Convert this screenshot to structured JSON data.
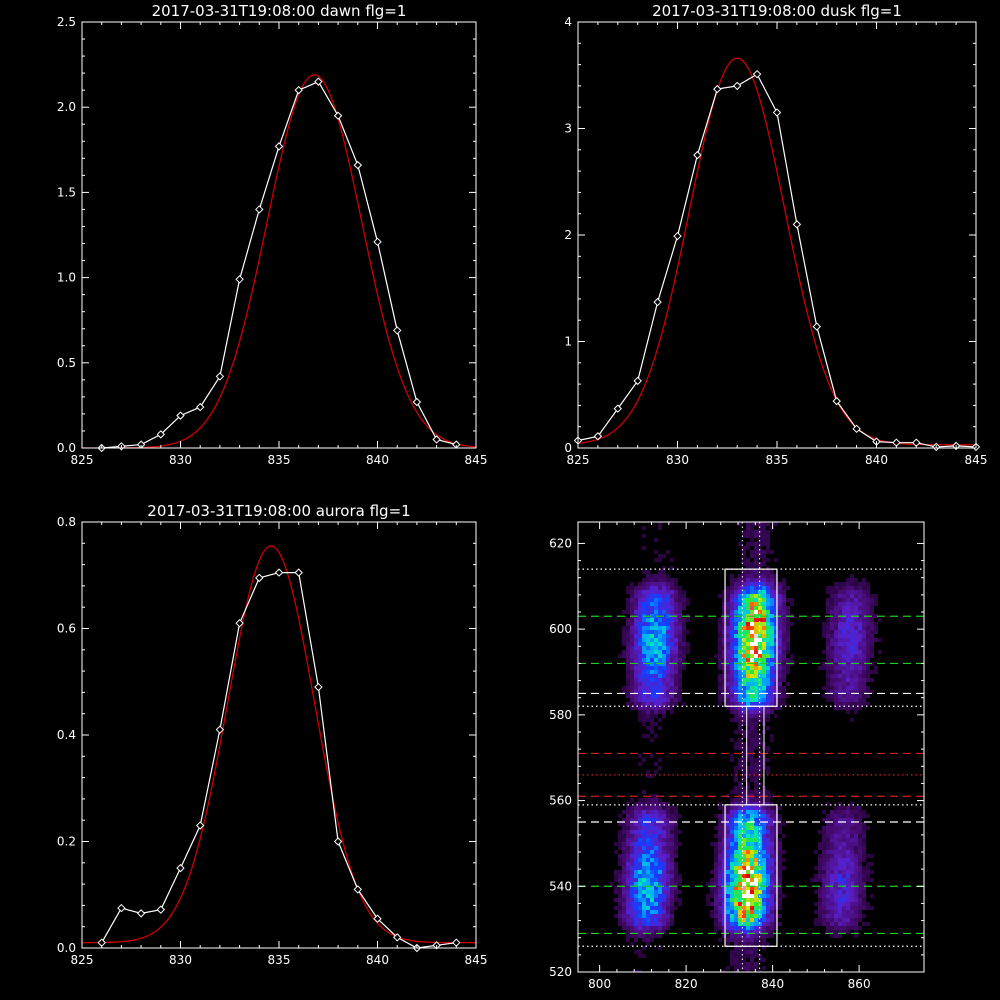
{
  "chart_data": [
    {
      "id": "dawn",
      "type": "line",
      "title": "2017-03-31T19:08:00 dawn flg=1",
      "xlim": [
        825,
        845
      ],
      "ylim": [
        0,
        2.5
      ],
      "xticks": [
        825,
        830,
        835,
        840,
        845
      ],
      "xtick_labels": [
        "825",
        "830",
        "835",
        "840",
        "845"
      ],
      "yticks": [
        0,
        0.5,
        1.0,
        1.5,
        2.0,
        2.5
      ],
      "ytick_labels": [
        "0.0",
        "0.5",
        "1.0",
        "1.5",
        "2.0",
        "2.5"
      ],
      "series": [
        {
          "kind": "data",
          "color": "#ffffff",
          "marker": "diamond",
          "x": [
            826,
            827,
            828,
            829,
            830,
            831,
            832,
            833,
            834,
            835,
            836,
            837,
            838,
            839,
            840,
            841,
            842,
            843,
            844
          ],
          "y": [
            0.0,
            0.01,
            0.02,
            0.08,
            0.19,
            0.24,
            0.42,
            0.99,
            1.4,
            1.77,
            2.1,
            2.15,
            1.95,
            1.66,
            1.21,
            0.69,
            0.27,
            0.05,
            0.02
          ]
        },
        {
          "kind": "fit",
          "color": "#cc0000",
          "model": "gaussian",
          "center": 836.8,
          "amplitude": 2.19,
          "sigma": 2.4,
          "baseline": 0.0
        }
      ]
    },
    {
      "id": "dusk",
      "type": "line",
      "title": "2017-03-31T19:08:00 dusk flg=1",
      "xlim": [
        825,
        845
      ],
      "ylim": [
        0,
        4
      ],
      "xticks": [
        825,
        830,
        835,
        840,
        845
      ],
      "xtick_labels": [
        "825",
        "830",
        "835",
        "840",
        "845"
      ],
      "yticks": [
        0,
        1,
        2,
        3,
        4
      ],
      "ytick_labels": [
        "0",
        "1",
        "2",
        "3",
        "4"
      ],
      "series": [
        {
          "kind": "data",
          "color": "#ffffff",
          "marker": "diamond",
          "x": [
            825,
            826,
            827,
            828,
            829,
            830,
            831,
            832,
            833,
            834,
            835,
            836,
            837,
            838,
            839,
            840,
            841,
            842,
            843,
            844,
            845
          ],
          "y": [
            0.07,
            0.11,
            0.37,
            0.63,
            1.37,
            1.99,
            2.75,
            3.37,
            3.4,
            3.51,
            3.15,
            2.1,
            1.14,
            0.44,
            0.18,
            0.06,
            0.05,
            0.05,
            0.01,
            0.02,
            0.01
          ]
        },
        {
          "kind": "fit",
          "color": "#cc0000",
          "model": "gaussian",
          "center": 833.0,
          "amplitude": 3.63,
          "sigma": 2.4,
          "baseline": 0.03
        }
      ]
    },
    {
      "id": "aurora",
      "type": "line",
      "title": "2017-03-31T19:08:00 aurora flg=1",
      "xlim": [
        825,
        845
      ],
      "ylim": [
        0,
        0.8
      ],
      "xticks": [
        825,
        830,
        835,
        840,
        845
      ],
      "xtick_labels": [
        "825",
        "830",
        "835",
        "840",
        "845"
      ],
      "yticks": [
        0,
        0.2,
        0.4,
        0.6,
        0.8
      ],
      "ytick_labels": [
        "0.0",
        "0.2",
        "0.4",
        "0.6",
        "0.8"
      ],
      "series": [
        {
          "kind": "data",
          "color": "#ffffff",
          "marker": "diamond",
          "x": [
            826,
            827,
            828,
            829,
            830,
            831,
            832,
            833,
            834,
            835,
            836,
            837,
            838,
            839,
            840,
            841,
            842,
            843,
            844
          ],
          "y": [
            0.01,
            0.075,
            0.065,
            0.072,
            0.15,
            0.23,
            0.41,
            0.61,
            0.695,
            0.705,
            0.705,
            0.49,
            0.2,
            0.11,
            0.055,
            0.02,
            0.0,
            0.005,
            0.01
          ]
        },
        {
          "kind": "fit",
          "color": "#cc0000",
          "model": "gaussian",
          "center": 834.6,
          "amplitude": 0.745,
          "sigma": 2.2,
          "baseline": 0.01
        }
      ]
    },
    {
      "id": "image",
      "type": "heatmap",
      "title": "",
      "xlim": [
        795,
        875
      ],
      "ylim": [
        520,
        625
      ],
      "xticks": [
        800,
        820,
        840,
        860
      ],
      "xtick_labels": [
        "800",
        "820",
        "840",
        "860"
      ],
      "yticks": [
        520,
        540,
        560,
        580,
        600,
        620
      ],
      "ytick_labels": [
        "520",
        "540",
        "560",
        "580",
        "600",
        "620"
      ],
      "colormap": "rainbow",
      "emission_columns": [
        {
          "x_center": 812,
          "x_width": 3.5,
          "intensity": 0.55
        },
        {
          "x_center": 835,
          "x_width": 3.5,
          "intensity": 1.0
        },
        {
          "x_center": 857,
          "x_width": 3.5,
          "intensity": 0.28
        }
      ],
      "emission_bands": [
        {
          "y_min": 580,
          "y_max": 612,
          "peak_y": 598
        },
        {
          "y_min": 528,
          "y_max": 560,
          "peak_y": 540
        }
      ],
      "boxes": [
        {
          "x_min": 829,
          "x_max": 841,
          "y_min": 582,
          "y_max": 614,
          "color": "#ffffff"
        },
        {
          "x_min": 829,
          "x_max": 841,
          "y_min": 526,
          "y_max": 559,
          "color": "#ffffff"
        }
      ],
      "connector": {
        "x_min": 834,
        "x_max": 838,
        "y_min": 559,
        "y_max": 582,
        "color": "#ffffff"
      },
      "hlines": [
        {
          "y": 614,
          "color": "#ffffff",
          "style": "dotted"
        },
        {
          "y": 603,
          "color": "#22cc22",
          "style": "dashed"
        },
        {
          "y": 592,
          "color": "#22cc22",
          "style": "dashed"
        },
        {
          "y": 585,
          "color": "#ffffff",
          "style": "dashed"
        },
        {
          "y": 582,
          "color": "#ffffff",
          "style": "dotted"
        },
        {
          "y": 571,
          "color": "#cc2222",
          "style": "dashed"
        },
        {
          "y": 566,
          "color": "#cc2222",
          "style": "dotted"
        },
        {
          "y": 561,
          "color": "#cc2222",
          "style": "dashed"
        },
        {
          "y": 559,
          "color": "#ffffff",
          "style": "dotted"
        },
        {
          "y": 555,
          "color": "#ffffff",
          "style": "dashed"
        },
        {
          "y": 540,
          "color": "#22cc22",
          "style": "dashed"
        },
        {
          "y": 529,
          "color": "#22cc22",
          "style": "dashed"
        },
        {
          "y": 526,
          "color": "#ffffff",
          "style": "dotted"
        }
      ],
      "vlines": [
        {
          "x": 833,
          "color": "#ffffff",
          "style": "dotted"
        },
        {
          "x": 837,
          "color": "#ffffff",
          "style": "dotted"
        }
      ]
    }
  ]
}
